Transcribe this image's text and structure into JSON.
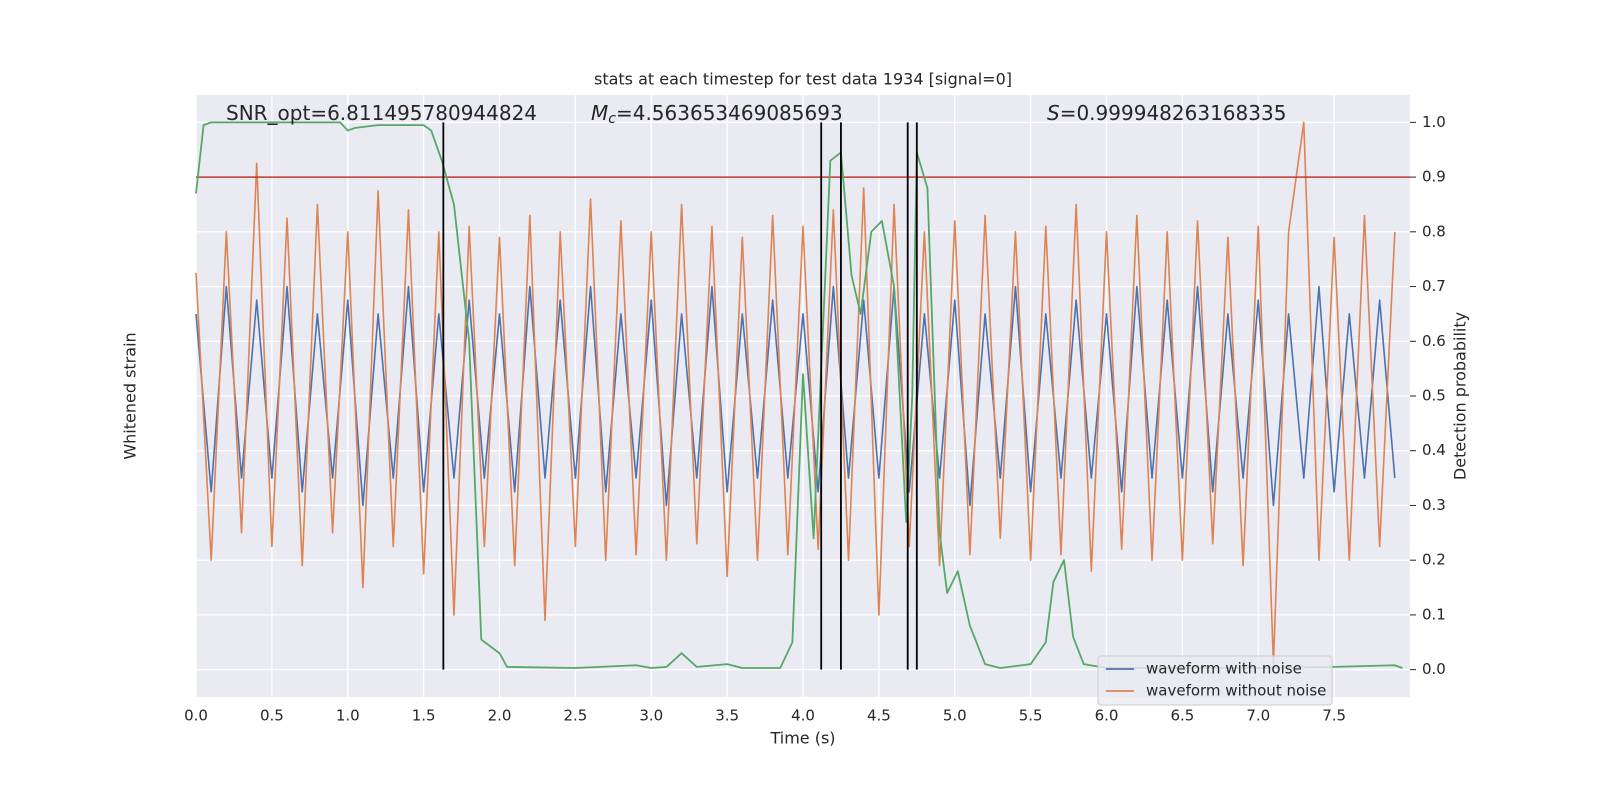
{
  "chart_data": {
    "type": "line",
    "title": "stats at each timestep for test data 1934 [signal=0]",
    "annotations": [
      {
        "text": "SNR_opt=6.811495780944824"
      },
      {
        "symbol": "M",
        "subscript": "c",
        "text": "=4.563653469085693"
      },
      {
        "symbol": "S",
        "text": "=0.999948263168335"
      }
    ],
    "xlabel": "Time (s)",
    "ylabel": "Whitened strain",
    "y2label": "Detection probability",
    "xlim": [
      0,
      8
    ],
    "xticks": [
      {
        "value": 0,
        "label": "0.0"
      },
      0.5,
      {
        "value": 1,
        "label": "1.0"
      },
      1.5,
      {
        "value": 2,
        "label": "2.0"
      },
      2.5,
      {
        "value": 3,
        "label": "3.0"
      },
      3.5,
      {
        "value": 4,
        "label": "4.0"
      },
      4.5,
      {
        "value": 5,
        "label": "5.0"
      },
      5.5,
      {
        "value": 6,
        "label": "6.0"
      },
      6.5,
      {
        "value": 7,
        "label": "7.0"
      },
      7.5
    ],
    "ylim": [
      -1.1,
      1.1
    ],
    "y2lim": [
      -0.05,
      1.05
    ],
    "y2ticks": [
      {
        "value": 0,
        "label": "0.0"
      },
      0.1,
      0.2,
      0.3,
      0.4,
      0.5,
      0.6,
      0.7,
      0.8,
      0.9,
      {
        "value": 1,
        "label": "1.0"
      }
    ],
    "grid": true,
    "legend": "lower right",
    "x": [
      0,
      0.1,
      0.2,
      0.3,
      0.4,
      0.5,
      0.6,
      0.7,
      0.8,
      0.9,
      1,
      1.1,
      1.2,
      1.3,
      1.4,
      1.5,
      1.6,
      1.7,
      1.8,
      1.9,
      2,
      2.1,
      2.2,
      2.3,
      2.4,
      2.5,
      2.6,
      2.7,
      2.8,
      2.9,
      3,
      3.1,
      3.2,
      3.3,
      3.4,
      3.5,
      3.6,
      3.7,
      3.8,
      3.9,
      4,
      4.1,
      4.2,
      4.3,
      4.4,
      4.5,
      4.6,
      4.7,
      4.8,
      4.9,
      5,
      5.1,
      5.2,
      5.3,
      5.4,
      5.5,
      5.6,
      5.7,
      5.8,
      5.9,
      6,
      6.1,
      6.2,
      6.3,
      6.4,
      6.5,
      6.6,
      6.7,
      6.8,
      6.9,
      7,
      7.1,
      7.2,
      7.3,
      7.4,
      7.5,
      7.6,
      7.7,
      7.8,
      7.9
    ],
    "series": [
      {
        "name": "waveform with noise",
        "color": "#4c72b0",
        "values": [
          0.3,
          -0.35,
          0.4,
          -0.3,
          0.35,
          -0.3,
          0.4,
          -0.35,
          0.3,
          -0.3,
          0.35,
          -0.4,
          0.3,
          -0.3,
          0.4,
          -0.35,
          0.3,
          -0.3,
          0.35,
          -0.3,
          0.3,
          -0.35,
          0.4,
          -0.3,
          0.35,
          -0.3,
          0.4,
          -0.35,
          0.3,
          -0.3,
          0.35,
          -0.4,
          0.3,
          -0.3,
          0.4,
          -0.35,
          0.3,
          -0.3,
          0.35,
          -0.3,
          0.3,
          -0.35,
          0.4,
          -0.3,
          0.35,
          -0.3,
          0.4,
          -0.35,
          0.3,
          -0.3,
          0.35,
          -0.4,
          0.3,
          -0.3,
          0.4,
          -0.35,
          0.3,
          -0.3,
          0.35,
          -0.3,
          0.3,
          -0.35,
          0.4,
          -0.3,
          0.35,
          -0.3,
          0.4,
          -0.35,
          0.3,
          -0.3,
          0.35,
          -0.4,
          0.3,
          -0.3,
          0.4,
          -0.35,
          0.3,
          -0.3,
          0.35,
          -0.3
        ]
      },
      {
        "name": "waveform without noise",
        "color": "#dd8452",
        "values": [
          0.45,
          -0.6,
          0.6,
          -0.5,
          0.85,
          -0.55,
          0.65,
          -0.62,
          0.7,
          -0.5,
          0.6,
          -0.7,
          0.75,
          -0.55,
          0.68,
          -0.65,
          0.6,
          -0.8,
          0.62,
          -0.55,
          0.58,
          -0.62,
          0.66,
          -0.82,
          0.6,
          -0.55,
          0.72,
          -0.6,
          0.64,
          -0.58,
          0.6,
          -0.6,
          0.7,
          -0.54,
          0.62,
          -0.66,
          0.58,
          -0.6,
          0.66,
          -0.58,
          0.62,
          -0.56,
          0.68,
          -0.6,
          0.76,
          -0.8,
          0.7,
          -0.55,
          0.6,
          -0.62,
          0.64,
          -0.58,
          0.66,
          -0.52,
          0.6,
          -0.6,
          0.62,
          -0.58,
          0.7,
          -0.64,
          0.6,
          -0.56,
          0.66,
          -0.6,
          0.6,
          -0.6,
          0.64,
          -0.54,
          0.58,
          -0.62,
          0.62,
          -0.98,
          0.6,
          1.0,
          -0.6,
          0.58,
          -0.6,
          0.66,
          -0.55,
          0.6
        ]
      }
    ],
    "probability": {
      "color": "#55a868",
      "axis": "y2",
      "x": [
        0,
        0.05,
        0.1,
        0.5,
        0.95,
        1,
        1.05,
        1.2,
        1.5,
        1.55,
        1.62,
        1.7,
        1.8,
        1.88,
        2,
        2.05,
        2.5,
        2.9,
        3,
        3.1,
        3.2,
        3.3,
        3.5,
        3.6,
        3.85,
        3.93,
        4,
        4.07,
        4.12,
        4.18,
        4.25,
        4.32,
        4.38,
        4.45,
        4.52,
        4.6,
        4.68,
        4.72,
        4.75,
        4.82,
        4.9,
        4.95,
        5.02,
        5.1,
        5.2,
        5.3,
        5.5,
        5.6,
        5.65,
        5.72,
        5.78,
        5.85,
        6,
        6.5,
        7,
        7.5,
        7.9,
        7.95
      ],
      "values": [
        0.87,
        0.995,
        1,
        1,
        1,
        0.985,
        0.99,
        0.995,
        0.995,
        0.985,
        0.93,
        0.85,
        0.6,
        0.055,
        0.03,
        0.005,
        0.003,
        0.008,
        0.003,
        0.005,
        0.03,
        0.005,
        0.01,
        0.003,
        0.003,
        0.05,
        0.54,
        0.24,
        0.55,
        0.93,
        0.945,
        0.72,
        0.65,
        0.8,
        0.82,
        0.7,
        0.27,
        0.5,
        0.945,
        0.88,
        0.25,
        0.14,
        0.18,
        0.08,
        0.01,
        0.003,
        0.01,
        0.05,
        0.16,
        0.2,
        0.06,
        0.01,
        0.003,
        0.003,
        0.003,
        0.005,
        0.008,
        0.003
      ]
    },
    "vlines": [
      1.63,
      4.12,
      4.25,
      4.69,
      4.75
    ],
    "vline_color": "#000000",
    "hline": 0.9,
    "hline_color": "#c0392b",
    "background": "#eaeaf2"
  }
}
